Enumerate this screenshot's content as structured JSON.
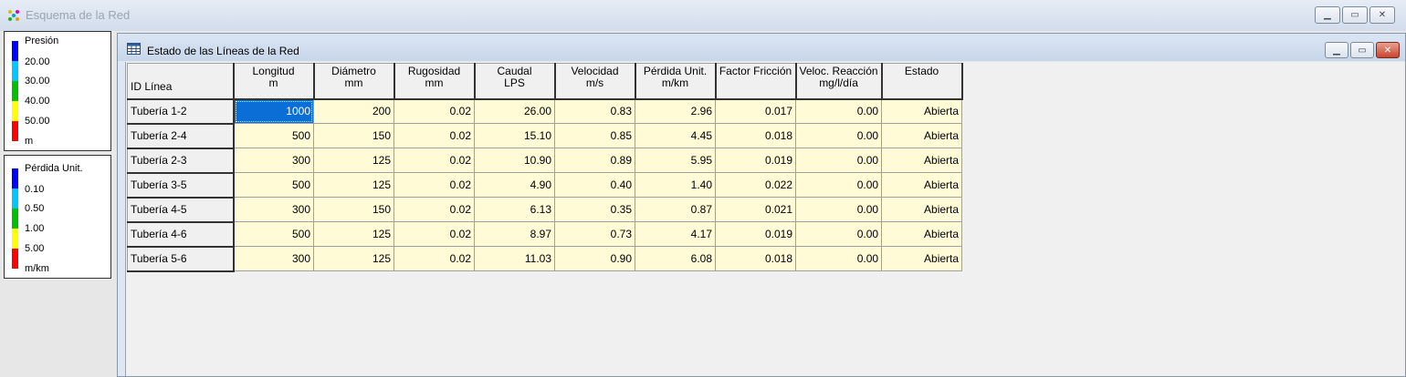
{
  "outer_window": {
    "title": "Esquema de la Red"
  },
  "legends": {
    "pressure": {
      "title": "Presión",
      "values": [
        "20.00",
        "30.00",
        "40.00",
        "50.00"
      ],
      "unit": "m",
      "colors": [
        "#0000ff",
        "#00c8ff",
        "#00c000",
        "#ffff00",
        "#ff0000"
      ]
    },
    "headloss": {
      "title": "Pérdida Unit.",
      "values": [
        "0.10",
        "0.50",
        "1.00",
        "5.00"
      ],
      "unit": "m/km",
      "colors": [
        "#0000ff",
        "#00c8ff",
        "#00c000",
        "#ffff00",
        "#ff0000"
      ]
    }
  },
  "child_window": {
    "title": "Estado de las Líneas de la Red"
  },
  "table": {
    "headers": [
      {
        "l1": "ID Línea",
        "l2": ""
      },
      {
        "l1": "Longitud",
        "l2": "m"
      },
      {
        "l1": "Diámetro",
        "l2": "mm"
      },
      {
        "l1": "Rugosidad",
        "l2": "mm"
      },
      {
        "l1": "Caudal",
        "l2": "LPS"
      },
      {
        "l1": "Velocidad",
        "l2": "m/s"
      },
      {
        "l1": "Pérdida Unit.",
        "l2": "m/km"
      },
      {
        "l1": "Factor Fricción",
        "l2": ""
      },
      {
        "l1": "Veloc. Reacción",
        "l2": "mg/l/día"
      },
      {
        "l1": "Estado",
        "l2": ""
      }
    ],
    "rows": [
      [
        "Tubería 1-2",
        "1000",
        "200",
        "0.02",
        "26.00",
        "0.83",
        "2.96",
        "0.017",
        "0.00",
        "Abierta"
      ],
      [
        "Tubería 2-4",
        "500",
        "150",
        "0.02",
        "15.10",
        "0.85",
        "4.45",
        "0.018",
        "0.00",
        "Abierta"
      ],
      [
        "Tubería 2-3",
        "300",
        "125",
        "0.02",
        "10.90",
        "0.89",
        "5.95",
        "0.019",
        "0.00",
        "Abierta"
      ],
      [
        "Tubería 3-5",
        "500",
        "125",
        "0.02",
        "4.90",
        "0.40",
        "1.40",
        "0.022",
        "0.00",
        "Abierta"
      ],
      [
        "Tubería 4-5",
        "300",
        "150",
        "0.02",
        "6.13",
        "0.35",
        "0.87",
        "0.021",
        "0.00",
        "Abierta"
      ],
      [
        "Tubería 4-6",
        "500",
        "125",
        "0.02",
        "8.97",
        "0.73",
        "4.17",
        "0.019",
        "0.00",
        "Abierta"
      ],
      [
        "Tubería 5-6",
        "300",
        "125",
        "0.02",
        "11.03",
        "0.90",
        "6.08",
        "0.018",
        "0.00",
        "Abierta"
      ]
    ],
    "selected_cell": {
      "row": 0,
      "col": 1
    }
  },
  "icons": [
    "app-icon",
    "grid-icon",
    "minimize-icon",
    "maximize-icon",
    "close-icon"
  ]
}
